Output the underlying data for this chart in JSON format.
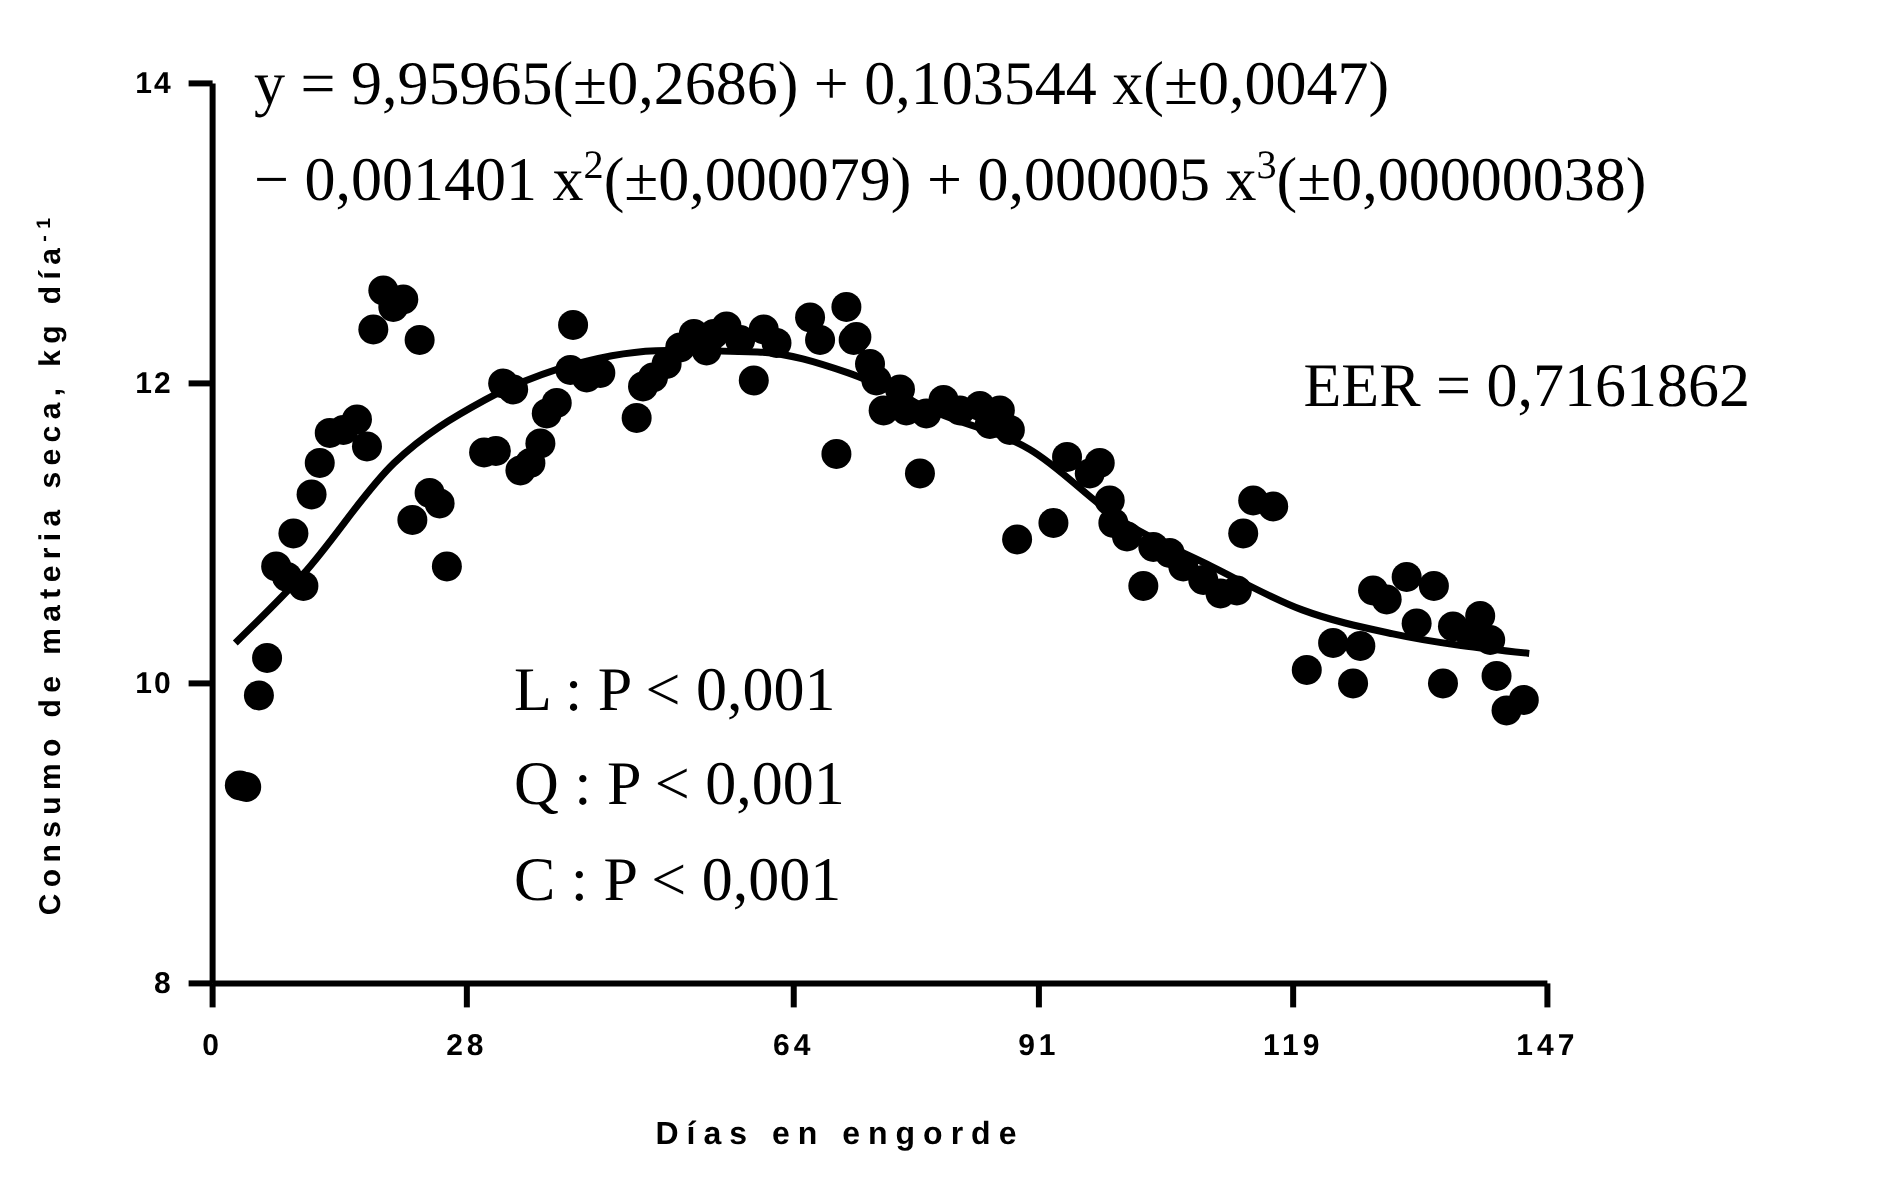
{
  "chart_data": {
    "type": "scatter",
    "xlabel": "Días en engorde",
    "ylabel": "Consumo de materia seca, kg día$^{-1}$",
    "xlim": [
      0,
      147
    ],
    "xticks": [
      0,
      28,
      64,
      91,
      119,
      147
    ],
    "ylim": [
      8,
      14
    ],
    "yticks": [
      8,
      10,
      12,
      14
    ],
    "grid": false,
    "annotations": [
      "y = 9,95965(±0,2686) + 0,103544 x(±0,0047)",
      "− 0,001401 x$^{2}$(±0,000079) + 0,000005 x$^{3}$(±0,00000038)",
      "EER = 0,7161862",
      "L : P < 0,001",
      "Q : P < 0,001",
      "C : P < 0,001"
    ],
    "series": [
      {
        "color": "#000000",
        "marker": "circle",
        "x": [
          3.0,
          3.7,
          5.1,
          6.0,
          7.0,
          8.2,
          10.0,
          8.9,
          10.9,
          11.8,
          12.9,
          14.4,
          15.9,
          17.0,
          17.7,
          18.8,
          21.0,
          19.9,
          22.8,
          22.0,
          23.9,
          25.0,
          25.8,
          29.9,
          31.2,
          32.0,
          33.1,
          33.9,
          35.0,
          36.1,
          36.8,
          37.9,
          39.7,
          39.4,
          41.2,
          42.7,
          46.7,
          47.4,
          48.5,
          50.0,
          51.5,
          53.0,
          54.4,
          55.2,
          56.6,
          58.1,
          59.6,
          60.7,
          62.1,
          65.8,
          66.9,
          68.7,
          69.8,
          70.6,
          70.9,
          72.4,
          73.1,
          73.9,
          75.7,
          76.4,
          77.9,
          78.6,
          80.5,
          82.3,
          84.5,
          85.6,
          86.7,
          87.8,
          88.6,
          92.6,
          94.1,
          97.7,
          96.6,
          98.8,
          99.2,
          100.7,
          102.5,
          103.6,
          105.4,
          106.9,
          109.1,
          111.0,
          112.8,
          113.5,
          114.6,
          116.8,
          120.5,
          123.4,
          125.6,
          126.4,
          127.8,
          129.3,
          131.5,
          134.5,
          132.6,
          135.5,
          136.6,
          138.5,
          139.6,
          140.7,
          141.4,
          142.5,
          144.4
        ],
        "values": [
          9.32,
          9.31,
          9.92,
          10.17,
          10.78,
          10.71,
          10.65,
          11.0,
          11.26,
          11.47,
          11.67,
          11.69,
          11.76,
          11.58,
          12.36,
          12.62,
          12.56,
          12.51,
          12.29,
          11.09,
          11.27,
          11.2,
          10.78,
          11.54,
          11.55,
          12.0,
          11.96,
          11.42,
          11.47,
          11.6,
          11.8,
          11.87,
          12.39,
          12.09,
          12.04,
          12.07,
          11.77,
          11.98,
          12.04,
          12.13,
          12.24,
          12.33,
          12.22,
          12.33,
          12.38,
          12.29,
          12.02,
          12.36,
          12.27,
          12.44,
          12.29,
          11.53,
          12.51,
          12.29,
          12.31,
          12.13,
          12.02,
          11.82,
          11.96,
          11.82,
          11.4,
          11.8,
          11.89,
          11.82,
          11.85,
          11.73,
          11.82,
          11.69,
          10.96,
          11.07,
          11.51,
          11.47,
          11.4,
          11.22,
          11.07,
          10.98,
          10.65,
          10.91,
          10.87,
          10.78,
          10.69,
          10.6,
          10.62,
          11.0,
          11.22,
          11.18,
          10.09,
          10.27,
          10.0,
          10.25,
          10.62,
          10.56,
          10.71,
          10.65,
          10.4,
          10.0,
          10.38,
          10.33,
          10.45,
          10.29,
          10.05,
          9.82,
          9.89
        ]
      },
      {
        "type": "line",
        "color": "#000000",
        "line_style": "solid",
        "x": [
          2.5,
          10,
          20,
          30,
          40,
          50,
          60,
          70,
          80,
          90,
          100,
          110,
          120,
          130,
          145
        ],
        "values": [
          10.27,
          10.73,
          11.47,
          11.89,
          12.13,
          12.22,
          12.21,
          12.07,
          11.8,
          11.56,
          11.09,
          10.78,
          10.49,
          10.33,
          10.2
        ]
      }
    ]
  }
}
